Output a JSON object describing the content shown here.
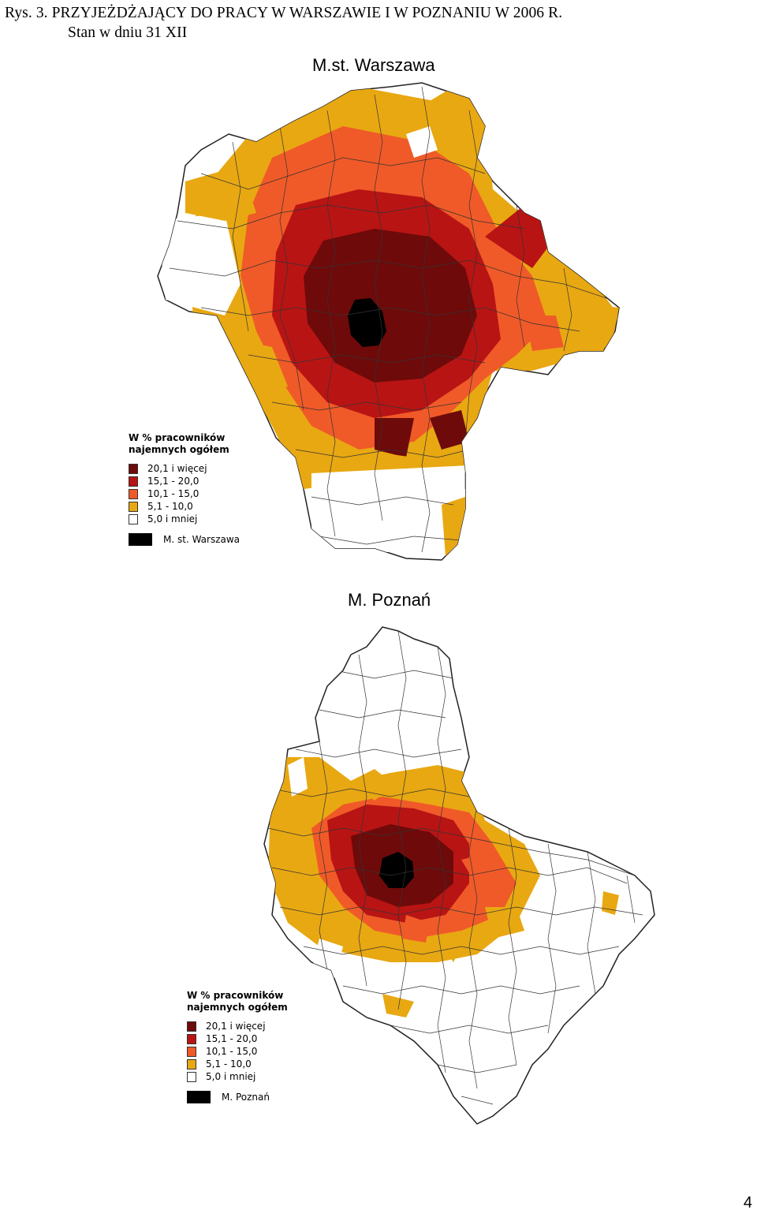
{
  "caption": {
    "line1": "Rys. 3. PRZYJEŻDŻAJĄCY DO PRACY  W  WARSZAWIE  I W  POZNANIU  W 2006 R.",
    "line2": "Stan w dniu 31 XII"
  },
  "maps": [
    {
      "title": "M.st. Warszawa",
      "legend": {
        "title_line1": "W % pracowników",
        "title_line2": "najemnych ogółem",
        "classes": [
          {
            "label": "20,1 i więcej",
            "color": "#6e0a0a"
          },
          {
            "label": "15,1 - 20,0",
            "color": "#b81414"
          },
          {
            "label": "10,1 - 15,0",
            "color": "#f05a28"
          },
          {
            "label": "5,1 - 10,0",
            "color": "#e8a812"
          },
          {
            "label": "5,0 i mniej",
            "color": "#ffffff"
          }
        ],
        "city_label": "M. st. Warszawa",
        "city_color": "#000000"
      }
    },
    {
      "title": "M. Poznań",
      "legend": {
        "title_line1": "W % pracowników",
        "title_line2": "najemnych ogółem",
        "classes": [
          {
            "label": "20,1 i więcej",
            "color": "#6e0a0a"
          },
          {
            "label": "15,1 - 20,0",
            "color": "#b81414"
          },
          {
            "label": "10,1 - 15,0",
            "color": "#f05a28"
          },
          {
            "label": "5,1 - 10,0",
            "color": "#e8a812"
          },
          {
            "label": "5,0 i mniej",
            "color": "#ffffff"
          }
        ],
        "city_label": "M. Poznań",
        "city_color": "#000000"
      }
    }
  ],
  "page_number": "4"
}
